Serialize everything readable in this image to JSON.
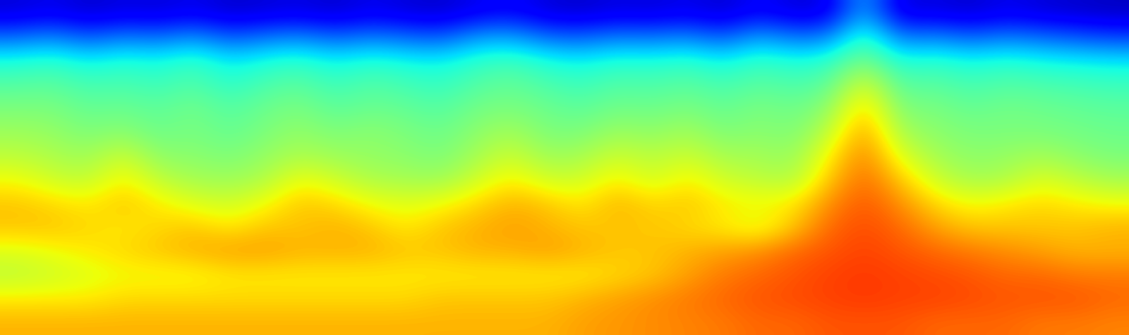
{
  "chart_data": {
    "type": "heatmap",
    "color": "jet",
    "tick_labels": false,
    "zlim": [
      0,
      1
    ],
    "cells": [
      [
        0.08,
        0.1,
        0.07,
        0.09,
        0.08,
        0.1,
        0.07,
        0.08,
        0.09,
        0.07,
        0.1,
        0.08,
        0.07,
        0.1,
        0.12,
        0.08,
        0.07,
        0.09,
        0.08,
        0.1,
        0.07,
        0.12,
        0.08,
        0.09,
        0.3,
        0.08,
        0.09,
        0.07,
        0.1,
        0.08,
        0.07,
        0.06
      ],
      [
        0.22,
        0.25,
        0.2,
        0.24,
        0.22,
        0.26,
        0.2,
        0.23,
        0.25,
        0.21,
        0.24,
        0.22,
        0.2,
        0.27,
        0.28,
        0.22,
        0.21,
        0.24,
        0.23,
        0.25,
        0.2,
        0.28,
        0.23,
        0.24,
        0.42,
        0.23,
        0.25,
        0.21,
        0.24,
        0.22,
        0.2,
        0.18
      ],
      [
        0.38,
        0.4,
        0.36,
        0.39,
        0.37,
        0.41,
        0.35,
        0.38,
        0.4,
        0.36,
        0.39,
        0.37,
        0.36,
        0.4,
        0.42,
        0.38,
        0.36,
        0.39,
        0.38,
        0.4,
        0.36,
        0.41,
        0.38,
        0.4,
        0.5,
        0.38,
        0.4,
        0.37,
        0.39,
        0.37,
        0.36,
        0.35
      ],
      [
        0.45,
        0.46,
        0.43,
        0.44,
        0.42,
        0.45,
        0.4,
        0.44,
        0.46,
        0.42,
        0.45,
        0.43,
        0.41,
        0.45,
        0.47,
        0.44,
        0.42,
        0.45,
        0.44,
        0.46,
        0.43,
        0.46,
        0.44,
        0.46,
        0.62,
        0.45,
        0.46,
        0.43,
        0.45,
        0.44,
        0.43,
        0.42
      ],
      [
        0.5,
        0.5,
        0.47,
        0.48,
        0.46,
        0.49,
        0.45,
        0.48,
        0.5,
        0.46,
        0.48,
        0.47,
        0.45,
        0.49,
        0.5,
        0.48,
        0.46,
        0.49,
        0.48,
        0.5,
        0.47,
        0.5,
        0.48,
        0.52,
        0.7,
        0.5,
        0.5,
        0.47,
        0.49,
        0.48,
        0.47,
        0.46
      ],
      [
        0.54,
        0.53,
        0.5,
        0.52,
        0.48,
        0.5,
        0.47,
        0.5,
        0.53,
        0.5,
        0.52,
        0.5,
        0.48,
        0.52,
        0.55,
        0.5,
        0.5,
        0.54,
        0.52,
        0.55,
        0.5,
        0.52,
        0.5,
        0.58,
        0.75,
        0.55,
        0.52,
        0.5,
        0.5,
        0.5,
        0.49,
        0.48
      ],
      [
        0.58,
        0.56,
        0.54,
        0.6,
        0.52,
        0.52,
        0.5,
        0.53,
        0.56,
        0.54,
        0.53,
        0.52,
        0.5,
        0.55,
        0.6,
        0.54,
        0.55,
        0.6,
        0.57,
        0.6,
        0.55,
        0.55,
        0.53,
        0.65,
        0.78,
        0.62,
        0.55,
        0.52,
        0.53,
        0.55,
        0.52,
        0.5
      ],
      [
        0.64,
        0.6,
        0.58,
        0.66,
        0.58,
        0.55,
        0.54,
        0.56,
        0.64,
        0.6,
        0.56,
        0.55,
        0.54,
        0.6,
        0.66,
        0.6,
        0.6,
        0.66,
        0.6,
        0.66,
        0.6,
        0.58,
        0.56,
        0.7,
        0.8,
        0.7,
        0.6,
        0.55,
        0.56,
        0.62,
        0.58,
        0.55
      ],
      [
        0.7,
        0.68,
        0.66,
        0.7,
        0.66,
        0.62,
        0.6,
        0.64,
        0.7,
        0.68,
        0.64,
        0.62,
        0.64,
        0.68,
        0.72,
        0.7,
        0.66,
        0.72,
        0.68,
        0.7,
        0.66,
        0.65,
        0.66,
        0.76,
        0.82,
        0.76,
        0.68,
        0.64,
        0.66,
        0.68,
        0.66,
        0.64
      ],
      [
        0.7,
        0.7,
        0.68,
        0.66,
        0.68,
        0.7,
        0.66,
        0.7,
        0.7,
        0.72,
        0.7,
        0.66,
        0.7,
        0.72,
        0.74,
        0.72,
        0.7,
        0.7,
        0.7,
        0.68,
        0.66,
        0.62,
        0.7,
        0.8,
        0.83,
        0.8,
        0.74,
        0.7,
        0.7,
        0.7,
        0.7,
        0.72
      ],
      [
        0.62,
        0.64,
        0.66,
        0.68,
        0.7,
        0.72,
        0.74,
        0.74,
        0.72,
        0.72,
        0.72,
        0.7,
        0.7,
        0.72,
        0.72,
        0.74,
        0.72,
        0.7,
        0.7,
        0.72,
        0.74,
        0.76,
        0.8,
        0.82,
        0.84,
        0.82,
        0.8,
        0.78,
        0.76,
        0.74,
        0.72,
        0.72
      ],
      [
        0.58,
        0.6,
        0.62,
        0.64,
        0.64,
        0.64,
        0.66,
        0.66,
        0.66,
        0.66,
        0.66,
        0.66,
        0.66,
        0.66,
        0.66,
        0.66,
        0.66,
        0.68,
        0.7,
        0.74,
        0.78,
        0.8,
        0.82,
        0.84,
        0.85,
        0.84,
        0.83,
        0.82,
        0.8,
        0.8,
        0.78,
        0.78
      ],
      [
        0.66,
        0.66,
        0.66,
        0.68,
        0.68,
        0.68,
        0.68,
        0.68,
        0.68,
        0.68,
        0.68,
        0.68,
        0.7,
        0.7,
        0.7,
        0.7,
        0.72,
        0.74,
        0.76,
        0.78,
        0.8,
        0.82,
        0.83,
        0.84,
        0.85,
        0.84,
        0.84,
        0.83,
        0.82,
        0.82,
        0.82,
        0.8
      ],
      [
        0.72,
        0.72,
        0.72,
        0.72,
        0.72,
        0.72,
        0.72,
        0.72,
        0.72,
        0.72,
        0.72,
        0.72,
        0.72,
        0.72,
        0.72,
        0.72,
        0.74,
        0.75,
        0.76,
        0.77,
        0.78,
        0.8,
        0.8,
        0.82,
        0.82,
        0.82,
        0.8,
        0.8,
        0.8,
        0.78,
        0.78,
        0.77
      ]
    ]
  }
}
